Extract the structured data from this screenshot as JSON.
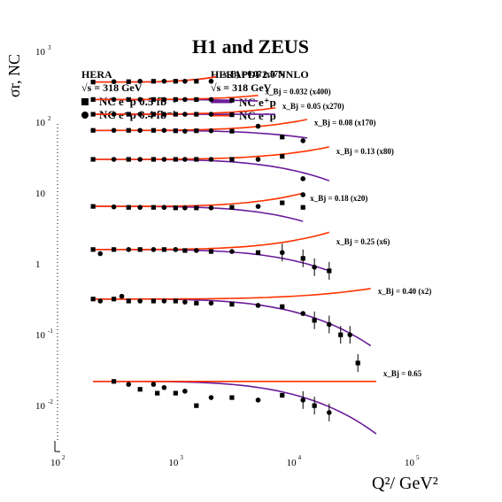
{
  "chart_data": {
    "type": "scatter",
    "title": "H1 and ZEUS",
    "xlabel": "Q²/ GeV²",
    "ylabel": "σr, NC",
    "x_scale": "log",
    "y_scale": "log",
    "xlim": [
      100,
      100000
    ],
    "ylim": [
      0.003,
      3000
    ],
    "x_ticks": [
      {
        "value": 100,
        "base": "10",
        "exp": "2"
      },
      {
        "value": 1000,
        "base": "10",
        "exp": "3"
      },
      {
        "value": 10000,
        "base": "10",
        "exp": "4"
      },
      {
        "value": 100000,
        "base": "10",
        "exp": "5"
      }
    ],
    "y_ticks": [
      {
        "value": 1000,
        "base": "10",
        "exp": "3"
      },
      {
        "value": 100,
        "base": "10",
        "exp": "2"
      },
      {
        "value": 10,
        "base": "10",
        "exp": ""
      },
      {
        "value": 1,
        "base": "1",
        "exp": ""
      },
      {
        "value": 0.1,
        "base": "10",
        "exp": "-1"
      },
      {
        "value": 0.01,
        "base": "10",
        "exp": "-2"
      }
    ],
    "legend": {
      "placement": "top-left",
      "data_header": "HERA",
      "data_energy": "√s = 318 GeV",
      "data_entries": [
        {
          "label": "NC e⁺p 0.5 fb⁻¹",
          "marker": "square"
        },
        {
          "label": "NC e⁻p 0.4 fb⁻¹",
          "marker": "circle"
        }
      ],
      "fit_header": "HERAPDF2.0 NNLO",
      "fit_energy": "√s = 318 GeV",
      "fit_entries": [
        {
          "label": "NC e⁺p",
          "color": "#6a1b9a"
        },
        {
          "label": "NC e⁻p",
          "color": "#ff3300"
        }
      ]
    },
    "colors": {
      "ep_plus": "#6a1b9a",
      "ep_minus": "#ff3300",
      "points": "#000000"
    },
    "bins": [
      {
        "label": "x_Bj = 0.02  (x575)",
        "x_range": [
          200,
          2200
        ],
        "y_minus_end": 440,
        "y_plus_end": 440,
        "points": [
          [
            200,
            370
          ],
          [
            300,
            375
          ],
          [
            400,
            375
          ],
          [
            500,
            380
          ],
          [
            650,
            380
          ],
          [
            800,
            380
          ],
          [
            1000,
            380
          ],
          [
            1200,
            380
          ],
          [
            1500,
            380
          ],
          [
            2000,
            380
          ]
        ]
      },
      {
        "label": "x_Bj = 0.032  (x400)",
        "x_range": [
          200,
          5000
        ],
        "y_minus_end": 240,
        "y_plus_end": 200,
        "points": [
          [
            200,
            210
          ],
          [
            300,
            210
          ],
          [
            400,
            210
          ],
          [
            500,
            210
          ],
          [
            650,
            210
          ],
          [
            800,
            210
          ],
          [
            1000,
            210
          ],
          [
            1200,
            210
          ],
          [
            1500,
            210
          ],
          [
            2000,
            210
          ],
          [
            3000,
            205
          ]
        ]
      },
      {
        "label": "x_Bj = 0.05  (x270)",
        "x_range": [
          200,
          7000
        ],
        "y_minus_end": 160,
        "y_plus_end": 130,
        "points": [
          [
            200,
            130
          ],
          [
            300,
            130
          ],
          [
            400,
            130
          ],
          [
            500,
            130
          ],
          [
            650,
            130
          ],
          [
            800,
            130
          ],
          [
            1000,
            130
          ],
          [
            1200,
            130
          ],
          [
            1500,
            130
          ],
          [
            2000,
            130
          ],
          [
            3000,
            128
          ]
        ]
      },
      {
        "label": "x_Bj = 0.08  (x170)",
        "x_range": [
          200,
          13000
        ],
        "y_minus_end": 110,
        "y_plus_end": 60,
        "points": [
          [
            200,
            77
          ],
          [
            300,
            77
          ],
          [
            400,
            77
          ],
          [
            500,
            77
          ],
          [
            650,
            77
          ],
          [
            800,
            77
          ],
          [
            1000,
            76
          ],
          [
            1200,
            75
          ],
          [
            1500,
            76
          ],
          [
            2000,
            76
          ],
          [
            3000,
            75
          ],
          [
            5000,
            88
          ],
          [
            8000,
            62
          ],
          [
            12000,
            55
          ]
        ]
      },
      {
        "label": "x_Bj = 0.13  (x80)",
        "x_range": [
          200,
          20000
        ],
        "y_minus_end": 45,
        "y_plus_end": 15,
        "points": [
          [
            200,
            30
          ],
          [
            300,
            30
          ],
          [
            400,
            30
          ],
          [
            500,
            30
          ],
          [
            650,
            30
          ],
          [
            800,
            30
          ],
          [
            1000,
            30
          ],
          [
            1200,
            30
          ],
          [
            1500,
            30
          ],
          [
            2000,
            30
          ],
          [
            3000,
            30
          ],
          [
            5000,
            30
          ],
          [
            8000,
            33
          ],
          [
            12000,
            16
          ]
        ]
      },
      {
        "label": "x_Bj = 0.18  (x20)",
        "x_range": [
          200,
          12000
        ],
        "y_minus_end": 10,
        "y_plus_end": 4,
        "points": [
          [
            200,
            6.5
          ],
          [
            300,
            6.4
          ],
          [
            400,
            6.3
          ],
          [
            500,
            6.3
          ],
          [
            650,
            6.3
          ],
          [
            800,
            6.3
          ],
          [
            1000,
            6.2
          ],
          [
            1200,
            6.2
          ],
          [
            1500,
            6.2
          ],
          [
            2000,
            6.2
          ],
          [
            3000,
            6.3
          ],
          [
            5000,
            6.5
          ],
          [
            8000,
            7.3
          ],
          [
            12000,
            9.5
          ],
          [
            12000,
            6.3
          ]
        ]
      },
      {
        "label": "x_Bj = 0.25  (x6)",
        "x_range": [
          200,
          20000
        ],
        "y_minus_end": 2.8,
        "y_plus_end": 0.8,
        "points": [
          [
            200,
            1.6
          ],
          [
            230,
            1.4
          ],
          [
            300,
            1.6
          ],
          [
            400,
            1.6
          ],
          [
            500,
            1.6
          ],
          [
            650,
            1.6
          ],
          [
            800,
            1.6
          ],
          [
            1000,
            1.6
          ],
          [
            1200,
            1.55
          ],
          [
            1500,
            1.55
          ],
          [
            2000,
            1.5
          ],
          [
            3000,
            1.5
          ],
          [
            5000,
            1.45
          ],
          [
            8000,
            1.45
          ],
          [
            12000,
            1.2
          ],
          [
            15000,
            0.9
          ],
          [
            20000,
            0.8
          ]
        ]
      },
      {
        "label": "x_Bj = 0.40  (x2)",
        "x_range": [
          200,
          45000
        ],
        "y_minus_end": 0.45,
        "y_plus_end": 0.07,
        "points": [
          [
            200,
            0.32
          ],
          [
            230,
            0.3
          ],
          [
            300,
            0.32
          ],
          [
            350,
            0.35
          ],
          [
            400,
            0.3
          ],
          [
            500,
            0.3
          ],
          [
            650,
            0.3
          ],
          [
            800,
            0.3
          ],
          [
            1000,
            0.3
          ],
          [
            1200,
            0.29
          ],
          [
            1500,
            0.28
          ],
          [
            2000,
            0.28
          ],
          [
            3000,
            0.27
          ],
          [
            5000,
            0.26
          ],
          [
            8000,
            0.25
          ],
          [
            12000,
            0.2
          ],
          [
            15000,
            0.16
          ],
          [
            20000,
            0.14
          ],
          [
            25000,
            0.1
          ],
          [
            30000,
            0.1
          ]
        ]
      },
      {
        "label": "x_Bj = 0.65",
        "x_range": [
          200,
          50000
        ],
        "y_minus_end": 0.022,
        "y_plus_end": 0.004,
        "points": [
          [
            300,
            0.022
          ],
          [
            400,
            0.02
          ],
          [
            500,
            0.017
          ],
          [
            650,
            0.02
          ],
          [
            700,
            0.015
          ],
          [
            800,
            0.018
          ],
          [
            1000,
            0.015
          ],
          [
            1200,
            0.016
          ],
          [
            1500,
            0.01
          ],
          [
            2000,
            0.013
          ],
          [
            3000,
            0.013
          ],
          [
            5000,
            0.012
          ],
          [
            8000,
            0.014
          ],
          [
            12000,
            0.012
          ],
          [
            15000,
            0.01
          ],
          [
            20000,
            0.008
          ],
          [
            35000,
            0.04
          ]
        ]
      }
    ]
  }
}
